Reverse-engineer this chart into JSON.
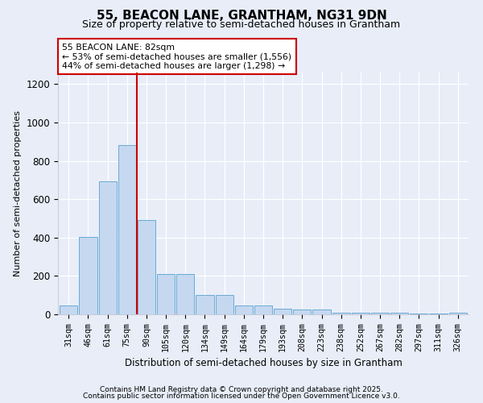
{
  "title_line1": "55, BEACON LANE, GRANTHAM, NG31 9DN",
  "title_line2": "Size of property relative to semi-detached houses in Grantham",
  "xlabel": "Distribution of semi-detached houses by size in Grantham",
  "ylabel": "Number of semi-detached properties",
  "categories": [
    "31sqm",
    "46sqm",
    "61sqm",
    "75sqm",
    "90sqm",
    "105sqm",
    "120sqm",
    "134sqm",
    "149sqm",
    "164sqm",
    "179sqm",
    "193sqm",
    "208sqm",
    "223sqm",
    "238sqm",
    "252sqm",
    "267sqm",
    "282sqm",
    "297sqm",
    "311sqm",
    "326sqm"
  ],
  "values": [
    45,
    405,
    695,
    880,
    490,
    210,
    210,
    100,
    100,
    45,
    45,
    30,
    25,
    25,
    10,
    10,
    10,
    10,
    5,
    5,
    10
  ],
  "bar_color": "#c5d8f0",
  "bar_edge_color": "#6aaad4",
  "vline_x": 3.5,
  "vline_color": "#cc0000",
  "annotation_title": "55 BEACON LANE: 82sqm",
  "annotation_line2": "← 53% of semi-detached houses are smaller (1,556)",
  "annotation_line3": "44% of semi-detached houses are larger (1,298) →",
  "ylim": [
    0,
    1260
  ],
  "yticks": [
    0,
    200,
    400,
    600,
    800,
    1000,
    1200
  ],
  "footer_line1": "Contains HM Land Registry data © Crown copyright and database right 2025.",
  "footer_line2": "Contains public sector information licensed under the Open Government Licence v3.0.",
  "bg_color": "#e8edf8",
  "plot_bg_color": "#e8edf8"
}
